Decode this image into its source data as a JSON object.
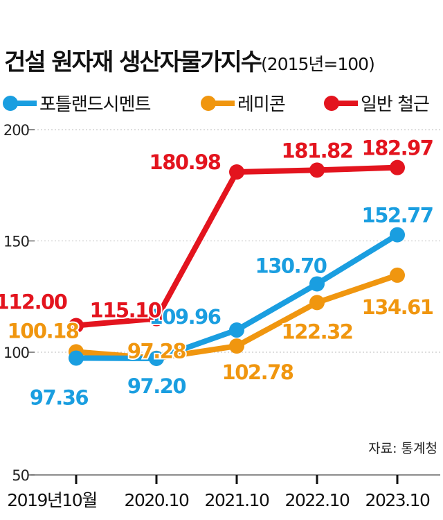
{
  "chart_data": {
    "type": "line",
    "title": "건설 원자재 생산자물가지수",
    "subtitle": "(2015년=100)",
    "categories": [
      "2019년10월",
      "2020.10",
      "2021.10",
      "2022.10",
      "2023.10"
    ],
    "yticks": [
      50,
      100,
      150,
      200
    ],
    "ylim": [
      50,
      200
    ],
    "grid": true,
    "legend_position": "top",
    "series": [
      {
        "name": "포틀랜드시멘트",
        "color": "#1a9ee0",
        "values": [
          97.36,
          97.2,
          109.96,
          130.7,
          152.77
        ],
        "labels": [
          "97.36",
          "97.20",
          "109.96",
          "130.70",
          "152.77"
        ]
      },
      {
        "name": "레미콘",
        "color": "#f0960f",
        "values": [
          100.18,
          97.28,
          102.78,
          122.32,
          134.61
        ],
        "labels": [
          "100.18",
          "97.28",
          "102.78",
          "122.32",
          "134.61"
        ]
      },
      {
        "name": "일반 철근",
        "color": "#e3141e",
        "values": [
          112.0,
          115.1,
          180.98,
          181.82,
          182.97
        ],
        "labels": [
          "112.00",
          "115.10",
          "180.98",
          "181.82",
          "182.97"
        ]
      }
    ],
    "source": "자료: 통계청"
  }
}
